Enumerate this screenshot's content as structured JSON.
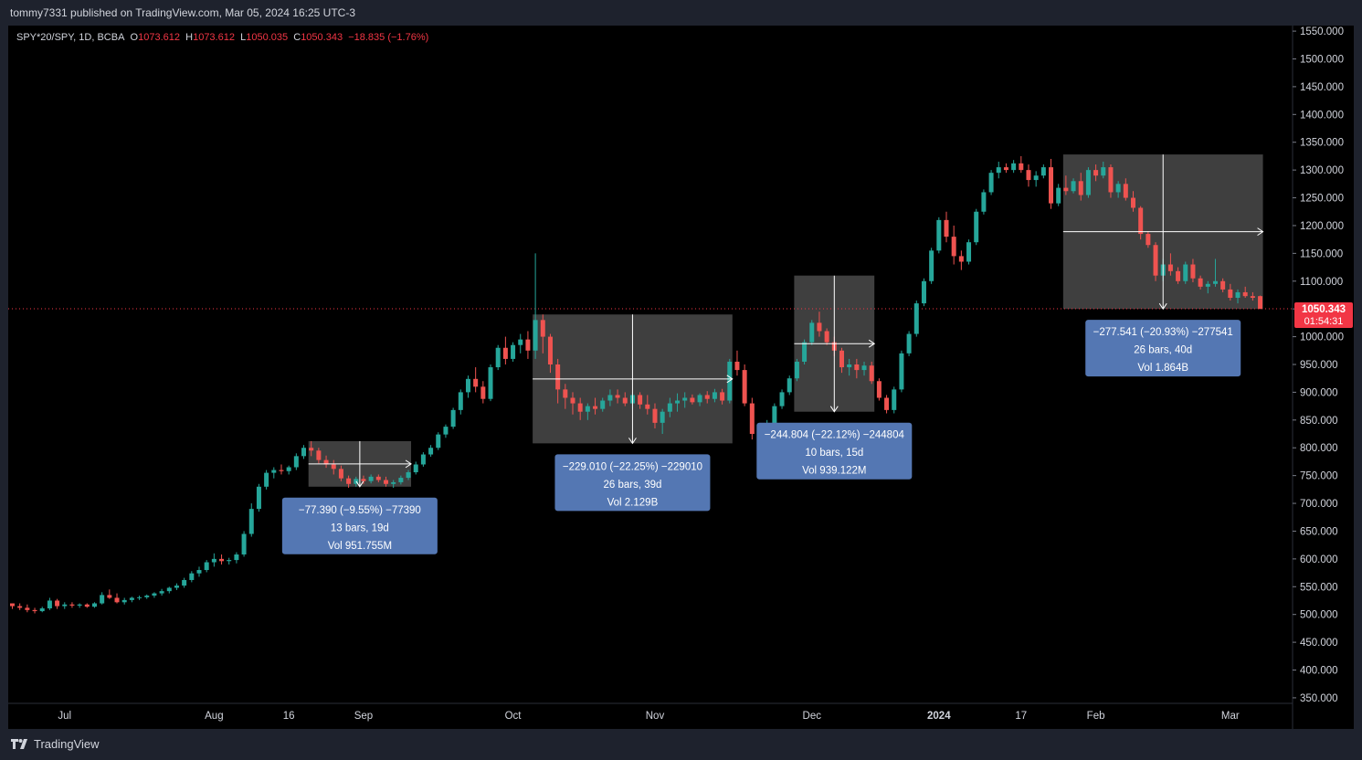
{
  "header": {
    "publish_text": "tommy7331 published on TradingView.com, Mar 05, 2024 16:25 UTC-3"
  },
  "legend": {
    "symbol": "SPY*20/SPY, 1D, BCBA",
    "open_label": "O",
    "open": "1073.612",
    "high_label": "H",
    "high": "1073.612",
    "low_label": "L",
    "low": "1050.035",
    "close_label": "C",
    "close": "1050.343",
    "change": "−18.835 (−1.76%)"
  },
  "price_label": {
    "price": "1050.343",
    "countdown": "01:54:31"
  },
  "footer": {
    "brand": "TradingView"
  },
  "colors": {
    "up": "#26a69a",
    "down": "#ef5350",
    "background": "#000000",
    "frame": "#1e222d",
    "measure_box": "#4a4a4a",
    "measure_label": "#5477b3",
    "last_price": "#f23645"
  },
  "chart_data": {
    "type": "candlestick",
    "y_axis": {
      "ticks": [
        350,
        400,
        450,
        500,
        550,
        600,
        650,
        700,
        750,
        800,
        850,
        900,
        950,
        1000,
        1050,
        1100,
        1150,
        1200,
        1250,
        1300,
        1350,
        1400,
        1450,
        1500,
        1550
      ],
      "tick_labels": [
        "350.000",
        "400.000",
        "450.000",
        "500.000",
        "550.000",
        "600.000",
        "650.000",
        "700.000",
        "750.000",
        "800.000",
        "850.000",
        "900.000",
        "950.000",
        "1000.000",
        "1050.000",
        "1100.000",
        "1150.000",
        "1200.000",
        "1250.000",
        "1300.000",
        "1350.000",
        "1400.000",
        "1450.000",
        "1500.000",
        "1550.000"
      ],
      "range": [
        340,
        1560
      ]
    },
    "x_axis": {
      "labels": [
        {
          "text": "Jul",
          "bar": 7,
          "bold": false
        },
        {
          "text": "Aug",
          "bar": 27,
          "bold": false
        },
        {
          "text": "16",
          "bar": 37,
          "bold": false
        },
        {
          "text": "Sep",
          "bar": 47,
          "bold": false
        },
        {
          "text": "Oct",
          "bar": 67,
          "bold": false
        },
        {
          "text": "Nov",
          "bar": 86,
          "bold": false
        },
        {
          "text": "Dec",
          "bar": 107,
          "bold": false
        },
        {
          "text": "2024",
          "bar": 124,
          "bold": true
        },
        {
          "text": "17",
          "bar": 135,
          "bold": false
        },
        {
          "text": "Feb",
          "bar": 145,
          "bold": false
        },
        {
          "text": "Mar",
          "bar": 163,
          "bold": false
        }
      ]
    },
    "last_price": 1050.343,
    "candles": [
      [
        520,
        520,
        510,
        515
      ],
      [
        515,
        520,
        508,
        512
      ],
      [
        512,
        518,
        504,
        508
      ],
      [
        508,
        512,
        502,
        506
      ],
      [
        506,
        514,
        504,
        511
      ],
      [
        511,
        530,
        508,
        525
      ],
      [
        525,
        528,
        510,
        515
      ],
      [
        515,
        522,
        510,
        518
      ],
      [
        518,
        522,
        512,
        516
      ],
      [
        516,
        520,
        512,
        518
      ],
      [
        518,
        520,
        512,
        514
      ],
      [
        514,
        522,
        512,
        520
      ],
      [
        520,
        540,
        518,
        535
      ],
      [
        535,
        545,
        528,
        530
      ],
      [
        530,
        538,
        520,
        522
      ],
      [
        522,
        530,
        518,
        526
      ],
      [
        526,
        532,
        522,
        530
      ],
      [
        530,
        534,
        526,
        531
      ],
      [
        531,
        536,
        528,
        534
      ],
      [
        534,
        540,
        530,
        538
      ],
      [
        538,
        546,
        534,
        542
      ],
      [
        542,
        550,
        538,
        548
      ],
      [
        548,
        556,
        544,
        552
      ],
      [
        552,
        566,
        548,
        562
      ],
      [
        562,
        578,
        558,
        574
      ],
      [
        574,
        586,
        568,
        580
      ],
      [
        580,
        598,
        576,
        594
      ],
      [
        594,
        610,
        586,
        600
      ],
      [
        600,
        608,
        590,
        596
      ],
      [
        596,
        602,
        590,
        598
      ],
      [
        598,
        612,
        592,
        608
      ],
      [
        608,
        650,
        604,
        645
      ],
      [
        645,
        700,
        640,
        690
      ],
      [
        690,
        735,
        685,
        730
      ],
      [
        730,
        760,
        725,
        755
      ],
      [
        755,
        765,
        745,
        760
      ],
      [
        760,
        770,
        752,
        758
      ],
      [
        758,
        768,
        752,
        765
      ],
      [
        765,
        790,
        760,
        785
      ],
      [
        785,
        805,
        780,
        800
      ],
      [
        800,
        812,
        785,
        795
      ],
      [
        795,
        800,
        772,
        778
      ],
      [
        778,
        786,
        764,
        770
      ],
      [
        770,
        778,
        752,
        762
      ],
      [
        762,
        768,
        740,
        745
      ],
      [
        745,
        750,
        728,
        735
      ],
      [
        735,
        748,
        730,
        744
      ],
      [
        744,
        750,
        735,
        740
      ],
      [
        740,
        752,
        736,
        748
      ],
      [
        748,
        752,
        738,
        742
      ],
      [
        742,
        748,
        730,
        735
      ],
      [
        735,
        742,
        728,
        738
      ],
      [
        738,
        750,
        734,
        746
      ],
      [
        746,
        760,
        742,
        756
      ],
      [
        756,
        775,
        752,
        770
      ],
      [
        770,
        792,
        766,
        788
      ],
      [
        788,
        805,
        784,
        800
      ],
      [
        800,
        828,
        796,
        824
      ],
      [
        824,
        842,
        818,
        838
      ],
      [
        838,
        872,
        834,
        868
      ],
      [
        868,
        905,
        860,
        900
      ],
      [
        900,
        930,
        890,
        924
      ],
      [
        924,
        945,
        900,
        910
      ],
      [
        910,
        920,
        880,
        888
      ],
      [
        888,
        950,
        884,
        945
      ],
      [
        945,
        985,
        940,
        980
      ],
      [
        980,
        1000,
        950,
        960
      ],
      [
        960,
        990,
        955,
        985
      ],
      [
        985,
        1005,
        970,
        995
      ],
      [
        995,
        1010,
        960,
        975
      ],
      [
        975,
        1150,
        960,
        1030
      ],
      [
        1030,
        1040,
        970,
        1000
      ],
      [
        1000,
        1005,
        935,
        950
      ],
      [
        950,
        960,
        880,
        905
      ],
      [
        905,
        915,
        870,
        890
      ],
      [
        890,
        900,
        860,
        880
      ],
      [
        880,
        890,
        850,
        865
      ],
      [
        865,
        880,
        850,
        875
      ],
      [
        875,
        890,
        860,
        870
      ],
      [
        870,
        890,
        865,
        885
      ],
      [
        885,
        905,
        875,
        895
      ],
      [
        895,
        905,
        880,
        890
      ],
      [
        890,
        900,
        875,
        880
      ],
      [
        880,
        900,
        870,
        895
      ],
      [
        895,
        900,
        870,
        878
      ],
      [
        878,
        895,
        860,
        870
      ],
      [
        870,
        880,
        835,
        845
      ],
      [
        845,
        870,
        825,
        865
      ],
      [
        865,
        890,
        855,
        880
      ],
      [
        880,
        898,
        865,
        885
      ],
      [
        885,
        900,
        872,
        890
      ],
      [
        890,
        896,
        878,
        882
      ],
      [
        882,
        898,
        875,
        895
      ],
      [
        895,
        902,
        880,
        888
      ],
      [
        888,
        906,
        882,
        900
      ],
      [
        900,
        906,
        878,
        885
      ],
      [
        885,
        960,
        880,
        955
      ],
      [
        955,
        975,
        930,
        940
      ],
      [
        940,
        950,
        875,
        880
      ],
      [
        880,
        890,
        815,
        825
      ],
      [
        825,
        840,
        808,
        815
      ],
      [
        815,
        850,
        810,
        842
      ],
      [
        842,
        880,
        838,
        875
      ],
      [
        875,
        905,
        870,
        900
      ],
      [
        900,
        930,
        895,
        925
      ],
      [
        925,
        960,
        920,
        955
      ],
      [
        955,
        995,
        950,
        990
      ],
      [
        990,
        1030,
        985,
        1025
      ],
      [
        1025,
        1045,
        1000,
        1010
      ],
      [
        1010,
        1015,
        985,
        990
      ],
      [
        990,
        1000,
        965,
        975
      ],
      [
        975,
        980,
        935,
        945
      ],
      [
        945,
        960,
        930,
        950
      ],
      [
        950,
        960,
        925,
        940
      ],
      [
        940,
        955,
        930,
        948
      ],
      [
        948,
        955,
        915,
        920
      ],
      [
        920,
        925,
        885,
        890
      ],
      [
        890,
        895,
        862,
        868
      ],
      [
        868,
        910,
        862,
        905
      ],
      [
        905,
        975,
        900,
        970
      ],
      [
        970,
        1010,
        965,
        1005
      ],
      [
        1005,
        1065,
        1000,
        1060
      ],
      [
        1060,
        1105,
        1055,
        1100
      ],
      [
        1100,
        1160,
        1095,
        1155
      ],
      [
        1155,
        1215,
        1150,
        1210
      ],
      [
        1210,
        1225,
        1170,
        1180
      ],
      [
        1180,
        1200,
        1130,
        1145
      ],
      [
        1145,
        1155,
        1120,
        1135
      ],
      [
        1135,
        1175,
        1130,
        1170
      ],
      [
        1170,
        1230,
        1165,
        1225
      ],
      [
        1225,
        1265,
        1220,
        1260
      ],
      [
        1260,
        1300,
        1255,
        1295
      ],
      [
        1295,
        1315,
        1285,
        1305
      ],
      [
        1305,
        1312,
        1295,
        1300
      ],
      [
        1300,
        1318,
        1295,
        1312
      ],
      [
        1312,
        1325,
        1295,
        1300
      ],
      [
        1300,
        1310,
        1270,
        1282
      ],
      [
        1282,
        1298,
        1270,
        1290
      ],
      [
        1290,
        1310,
        1285,
        1305
      ],
      [
        1305,
        1320,
        1230,
        1240
      ],
      [
        1240,
        1275,
        1235,
        1268
      ],
      [
        1268,
        1290,
        1255,
        1262
      ],
      [
        1262,
        1285,
        1258,
        1280
      ],
      [
        1280,
        1295,
        1245,
        1255
      ],
      [
        1255,
        1305,
        1250,
        1300
      ],
      [
        1300,
        1310,
        1280,
        1290
      ],
      [
        1290,
        1315,
        1285,
        1305
      ],
      [
        1305,
        1310,
        1250,
        1260
      ],
      [
        1260,
        1280,
        1250,
        1275
      ],
      [
        1275,
        1285,
        1245,
        1250
      ],
      [
        1250,
        1262,
        1225,
        1232
      ],
      [
        1232,
        1235,
        1175,
        1185
      ],
      [
        1185,
        1190,
        1160,
        1165
      ],
      [
        1165,
        1170,
        1100,
        1110
      ],
      [
        1110,
        1140,
        1100,
        1130
      ],
      [
        1130,
        1150,
        1110,
        1118
      ],
      [
        1118,
        1125,
        1095,
        1100
      ],
      [
        1100,
        1135,
        1095,
        1130
      ],
      [
        1130,
        1140,
        1098,
        1105
      ],
      [
        1105,
        1110,
        1085,
        1090
      ],
      [
        1090,
        1100,
        1078,
        1095
      ],
      [
        1095,
        1140,
        1090,
        1100
      ],
      [
        1100,
        1105,
        1080,
        1085
      ],
      [
        1085,
        1095,
        1065,
        1070
      ],
      [
        1070,
        1085,
        1060,
        1080
      ],
      [
        1080,
        1090,
        1070,
        1073
      ],
      [
        1073,
        1080,
        1065,
        1070
      ],
      [
        1073,
        1074,
        1050,
        1050
      ]
    ],
    "measurements": [
      {
        "start_bar": 40,
        "end_bar": 53,
        "top": 812,
        "bottom": 730,
        "label_lines": [
          "−77.390 (−9.55%) −77390",
          "13 bars, 19d",
          "Vol 951.755M"
        ]
      },
      {
        "start_bar": 70,
        "end_bar": 96,
        "top": 1040,
        "bottom": 808,
        "label_lines": [
          "−229.010 (−22.25%) −229010",
          "26 bars, 39d",
          "Vol 2.129B"
        ]
      },
      {
        "start_bar": 105,
        "end_bar": 115,
        "top": 1110,
        "bottom": 865,
        "label_lines": [
          "−244.804 (−22.12%) −244804",
          "10 bars, 15d",
          "Vol 939.122M"
        ]
      },
      {
        "start_bar": 141,
        "end_bar": 167,
        "top": 1328,
        "bottom": 1050,
        "label_lines": [
          "−277.541 (−20.93%) −277541",
          "26 bars, 40d",
          "Vol 1.864B"
        ]
      }
    ]
  }
}
